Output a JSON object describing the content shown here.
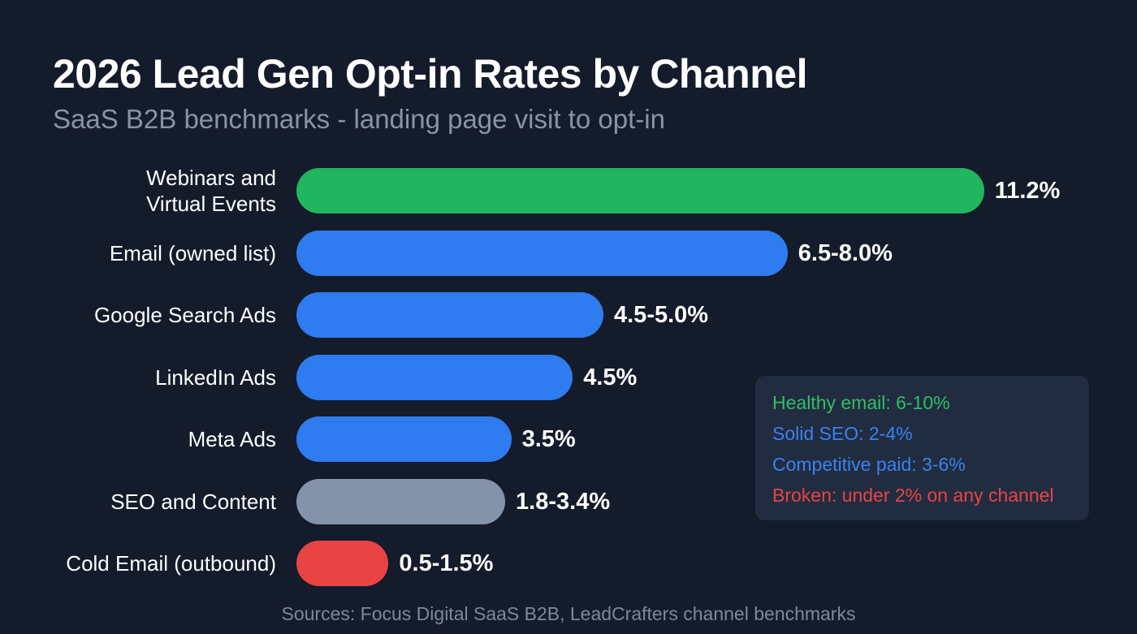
{
  "chart_data": {
    "type": "bar",
    "orientation": "horizontal",
    "title": "2026 Lead Gen Opt-in Rates by Channel",
    "subtitle": "SaaS B2B benchmarks - landing page visit to opt-in",
    "unit": "%",
    "xlim": [
      0,
      12.5
    ],
    "grid": false,
    "categories": [
      "Webinars and\nVirtual Events",
      "Email (owned list)",
      "Google Search Ads",
      "LinkedIn Ads",
      "Meta Ads",
      "SEO and Content",
      "Cold Email (outbound)"
    ],
    "low": [
      11.2,
      6.5,
      4.5,
      4.5,
      3.5,
      1.8,
      0.5
    ],
    "high": [
      11.2,
      8.0,
      5.0,
      4.5,
      3.5,
      3.4,
      1.5
    ],
    "labels": [
      "11.2%",
      "6.5-8.0%",
      "4.5-5.0%",
      "4.5%",
      "3.5%",
      "1.8-3.4%",
      "0.5-1.5%"
    ],
    "colors": [
      "#22b55f",
      "#2f7bf0",
      "#2f7bf0",
      "#2f7bf0",
      "#2f7bf0",
      "#8593aa",
      "#e84444"
    ],
    "legend": {
      "placement": "bottom-right",
      "items": [
        {
          "text": "Healthy email: 6-10%",
          "color": "#2fbf64"
        },
        {
          "text": "Solid SEO: 2-4%",
          "color": "#3b82f0"
        },
        {
          "text": "Competitive paid: 3-6%",
          "color": "#3b82f0"
        },
        {
          "text": "Broken: under 2% on any channel",
          "color": "#e84444"
        }
      ]
    },
    "source": "Sources: Focus Digital SaaS B2B, LeadCrafters channel benchmarks"
  }
}
